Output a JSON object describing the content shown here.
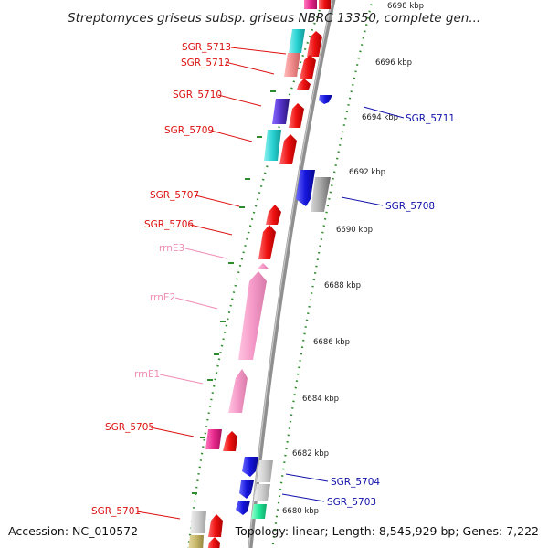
{
  "header": {
    "title": "Streptomyces griseus subsp. griseus NBRC 13350, complete gen...",
    "top_tick": "6698 kbp"
  },
  "footer": {
    "accession": "Accession: NC_010572",
    "summary": "Topology: linear; Length: 8,545,929 bp; Genes: 7,222"
  },
  "ticks": [
    {
      "label": "6696 kbp",
      "kbp": 6696
    },
    {
      "label": "6694 kbp",
      "kbp": 6694
    },
    {
      "label": "6692 kbp",
      "kbp": 6692
    },
    {
      "label": "6690 kbp",
      "kbp": 6690
    },
    {
      "label": "6688 kbp",
      "kbp": 6688
    },
    {
      "label": "6686 kbp",
      "kbp": 6686
    },
    {
      "label": "6684 kbp",
      "kbp": 6684
    },
    {
      "label": "6682 kbp",
      "kbp": 6682
    },
    {
      "label": "6680 kbp",
      "kbp": 6680
    }
  ],
  "labels_left": [
    {
      "text": "SGR_5713",
      "color": "#dd1111"
    },
    {
      "text": "SGR_5712",
      "color": "#dd1111"
    },
    {
      "text": "SGR_5710",
      "color": "#dd1111"
    },
    {
      "text": "SGR_5709",
      "color": "#dd1111"
    },
    {
      "text": "SGR_5707",
      "color": "#dd1111"
    },
    {
      "text": "SGR_5706",
      "color": "#dd1111"
    },
    {
      "text": "rrnE3",
      "color": "#f08cb4"
    },
    {
      "text": "rrnE2",
      "color": "#f08cb4"
    },
    {
      "text": "rrnE1",
      "color": "#f08cb4"
    },
    {
      "text": "SGR_5705",
      "color": "#dd1111"
    },
    {
      "text": "SGR_5701",
      "color": "#dd1111"
    }
  ],
  "labels_right": [
    {
      "text": "SGR_5711",
      "color": "#1111aa"
    },
    {
      "text": "SGR_5708",
      "color": "#1111aa"
    },
    {
      "text": "SGR_5704",
      "color": "#1111aa"
    },
    {
      "text": "SGR_5703",
      "color": "#1111aa"
    }
  ],
  "colors": {
    "backbone": "#8a8a8a",
    "tick_marks": "#2e8b2e",
    "forward_gene": "#ee1111",
    "reverse_gene": "#1515dd",
    "rrna": "#f59ac8",
    "cyan_feature": "#2ad3d3",
    "gray_feature": "#9a9a9a",
    "magenta_feature": "#e8288c"
  }
}
